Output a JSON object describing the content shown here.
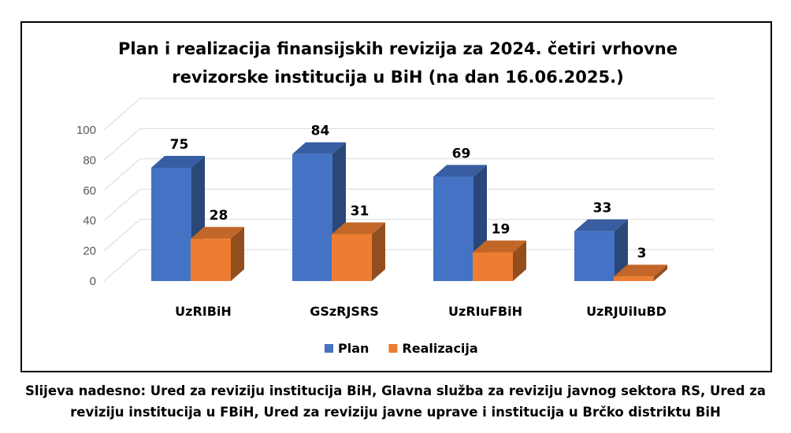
{
  "chart_data": {
    "type": "bar",
    "title_lines": [
      "Plan i realizacija finansijskih revizija za 2024. četiri vrhovne",
      "revizorske institucija u BiH (na dan 16.06.2025.)"
    ],
    "categories": [
      "UzRIBiH",
      "GSzRJSRS",
      "UzRIuFBiH",
      "UzRJUiIuBD"
    ],
    "series": [
      {
        "name": "Plan",
        "values": [
          75,
          84,
          69,
          33
        ],
        "color": "#4472C4"
      },
      {
        "name": "Realizacija",
        "values": [
          28,
          31,
          19,
          3
        ],
        "color": "#ED7D31"
      }
    ],
    "yticks": [
      0,
      20,
      40,
      60,
      80,
      100
    ],
    "ylim": [
      0,
      100
    ],
    "grid": true,
    "style": "3d-clustered-column",
    "legend_position": "bottom"
  },
  "caption": {
    "line1": "Slijeva nadesno: Ured za reviziju institucija BiH, Glavna služba za reviziju javnog sektora RS, Ured za",
    "line2": "reviziju institucija u FBiH, Ured za reviziju javne uprave i institucija u Brčko distriktu BiH"
  }
}
